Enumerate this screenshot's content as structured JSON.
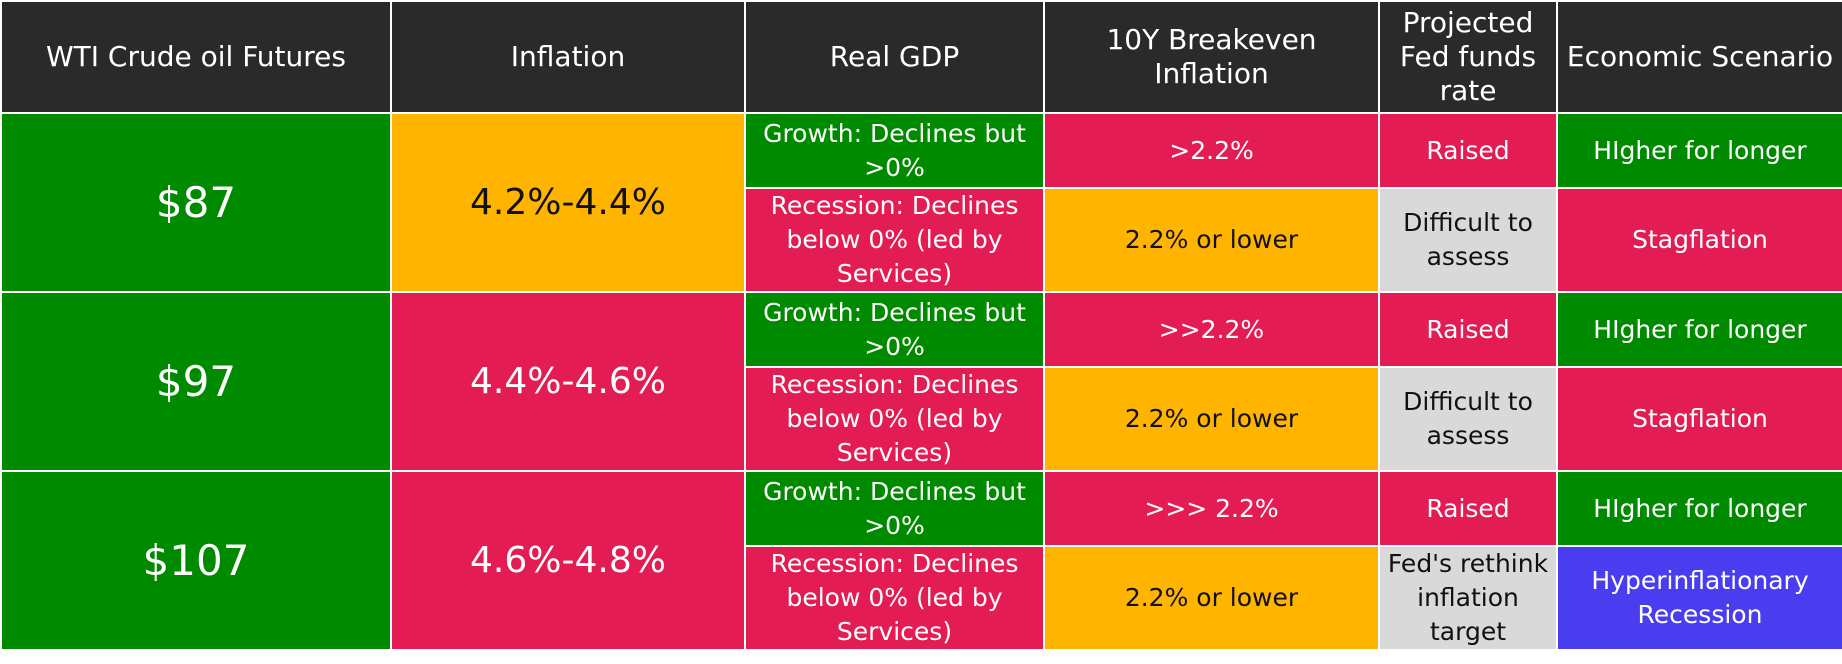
{
  "colors": {
    "header_bg": "#2a2a2a",
    "green": "#008a00",
    "red": "#e31c54",
    "amber": "#ffb400",
    "gray": "#d9d9d9",
    "blue": "#4a3df0"
  },
  "headers": [
    "WTI Crude oil Futures",
    "Inflation",
    "Real GDP",
    "10Y Breakeven Inflation",
    "Projected Fed funds rate",
    "Economic Scenario"
  ],
  "groups": [
    {
      "price": "$87",
      "inflation": "4.2%-4.4%",
      "rows": [
        {
          "gdp": "Growth: Declines but >0%",
          "breakeven": ">2.2%",
          "fed": "Raised",
          "scenario": "HIgher for longer"
        },
        {
          "gdp": "Recession: Declines below 0% (led by Services)",
          "breakeven": "2.2% or lower",
          "fed": "Difficult to assess",
          "scenario": "Stagflation"
        }
      ]
    },
    {
      "price": "$97",
      "inflation": "4.4%-4.6%",
      "rows": [
        {
          "gdp": "Growth: Declines but >0%",
          "breakeven": ">>2.2%",
          "fed": "Raised",
          "scenario": "HIgher for longer"
        },
        {
          "gdp": "Recession: Declines below 0% (led by Services)",
          "breakeven": "2.2% or lower",
          "fed": "Difficult to assess",
          "scenario": "Stagflation"
        }
      ]
    },
    {
      "price": "$107",
      "inflation": "4.6%-4.8%",
      "rows": [
        {
          "gdp": "Growth: Declines but >0%",
          "breakeven": ">>> 2.2%",
          "fed": "Raised",
          "scenario": "HIgher for longer"
        },
        {
          "gdp": "Recession: Declines below 0% (led by Services)",
          "breakeven": "2.2% or lower",
          "fed": "Fed's rethink inflation target",
          "scenario": "Hyperinflationary Recession"
        }
      ]
    }
  ]
}
